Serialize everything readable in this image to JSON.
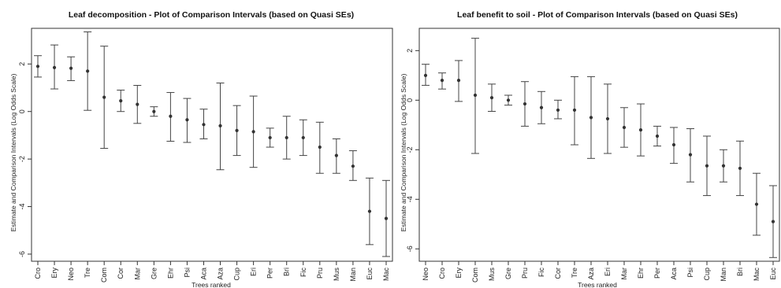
{
  "chart_data": [
    {
      "type": "errorbar",
      "title": "Leaf decomposition - Plot of Comparison Intervals (based on Quasi SEs)",
      "xlabel": "Trees ranked",
      "ylabel": "Estimate and Comparison Intervals (Log Odds Scale)",
      "ylim": [
        -6.3,
        3.5
      ],
      "yticks": [
        2,
        0,
        -2,
        -4,
        -6
      ],
      "categories": [
        "Cro",
        "Ery",
        "Neo",
        "Tre",
        "Com",
        "Cor",
        "Mar",
        "Gre",
        "Ehr",
        "Psi",
        "Aca",
        "Aza",
        "Cup",
        "Eri",
        "Per",
        "Bri",
        "Fic",
        "Pru",
        "Mus",
        "Man",
        "Euc",
        "Mac"
      ],
      "estimates": [
        1.9,
        1.85,
        1.82,
        1.7,
        0.6,
        0.45,
        0.3,
        0.0,
        -0.2,
        -0.35,
        -0.55,
        -0.6,
        -0.8,
        -0.85,
        -1.1,
        -1.1,
        -1.1,
        -1.5,
        -1.85,
        -2.3,
        -4.2,
        -4.5
      ],
      "lower": [
        1.45,
        0.95,
        1.3,
        0.05,
        -1.55,
        0.0,
        -0.5,
        -0.2,
        -1.25,
        -1.3,
        -1.15,
        -2.45,
        -1.85,
        -2.35,
        -1.5,
        -2.0,
        -1.85,
        -2.6,
        -2.6,
        -2.9,
        -5.6,
        -6.1
      ],
      "upper": [
        2.35,
        2.8,
        2.3,
        3.35,
        2.75,
        0.9,
        1.1,
        0.2,
        0.8,
        0.55,
        0.1,
        1.2,
        0.25,
        0.65,
        -0.7,
        -0.2,
        -0.35,
        -0.45,
        -1.15,
        -1.65,
        -2.8,
        -2.9
      ]
    },
    {
      "type": "errorbar",
      "title": "Leaf benefit to soil - Plot of Comparison Intervals (based on Quasi SEs)",
      "xlabel": "Trees ranked",
      "ylabel": "Estimate and Comparison Intervals (Log Odds Scale)",
      "ylim": [
        -6.5,
        2.9
      ],
      "yticks": [
        2,
        0,
        -2,
        -4,
        -6
      ],
      "categories": [
        "Neo",
        "Cro",
        "Ery",
        "Com",
        "Mus",
        "Gre",
        "Pru",
        "Fic",
        "Cor",
        "Tre",
        "Aza",
        "Eri",
        "Mar",
        "Ehr",
        "Per",
        "Aca",
        "Psi",
        "Cup",
        "Man",
        "Bri",
        "Mac",
        "Euc"
      ],
      "estimates": [
        1.0,
        0.8,
        0.8,
        0.2,
        0.1,
        0.0,
        -0.15,
        -0.3,
        -0.4,
        -0.4,
        -0.7,
        -0.75,
        -1.1,
        -1.2,
        -1.45,
        -1.8,
        -2.2,
        -2.65,
        -2.65,
        -2.75,
        -4.2,
        -4.9
      ],
      "lower": [
        0.6,
        0.45,
        -0.05,
        -2.15,
        -0.45,
        -0.2,
        -1.05,
        -0.95,
        -0.75,
        -1.8,
        -2.35,
        -2.15,
        -1.9,
        -2.25,
        -1.85,
        -2.55,
        -3.3,
        -3.85,
        -3.3,
        -3.85,
        -5.45,
        -6.35
      ],
      "upper": [
        1.45,
        1.1,
        1.6,
        2.5,
        0.65,
        0.2,
        0.75,
        0.35,
        0.0,
        0.95,
        0.95,
        0.65,
        -0.3,
        -0.15,
        -1.05,
        -1.1,
        -1.15,
        -1.45,
        -2.0,
        -1.65,
        -2.95,
        -3.45
      ]
    }
  ]
}
